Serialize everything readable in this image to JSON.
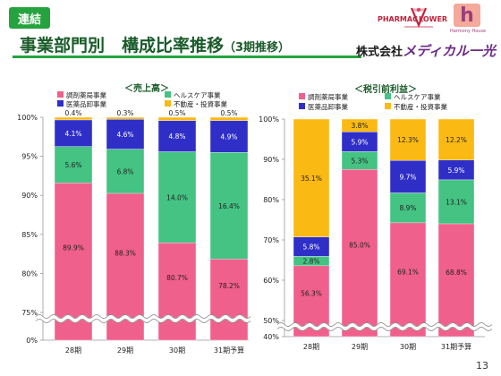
{
  "header": {
    "badge": "連結",
    "title": "事業部門別　構成比率推移",
    "title_sub": "（3期推移）",
    "company_prefix": "株式会社",
    "company_name": "メディカル一光",
    "logo_pharmacy": "PHARMAC",
    "logo_flower": "LOWER",
    "logo_harmony": "Harmony House"
  },
  "page_number": "13",
  "colors": {
    "調剤薬局事業": "#f0608c",
    "ヘルスケア事業": "#44c383",
    "医薬品卸事業": "#2f2fc8",
    "不動産・投資事業": "#fbb913",
    "brand_green": "#26a33e"
  },
  "chart_data": [
    {
      "type": "bar",
      "stacked": true,
      "title": "＜売上高＞",
      "categories": [
        "28期",
        "29期",
        "30期",
        "31期予算"
      ],
      "series": [
        {
          "name": "調剤薬局事業",
          "values": [
            89.9,
            88.3,
            80.7,
            78.2
          ],
          "labels": [
            "89.9%",
            "88.3%",
            "80.7%",
            "78.2%"
          ]
        },
        {
          "name": "ヘルスケア事業",
          "values": [
            5.6,
            6.8,
            14.0,
            16.4
          ],
          "labels": [
            "5.6%",
            "6.8%",
            "14.0%",
            "16.4%"
          ]
        },
        {
          "name": "医薬品卸事業",
          "values": [
            4.1,
            4.6,
            4.8,
            4.9
          ],
          "labels": [
            "4.1%",
            "4.6%",
            "4.8%",
            "4.9%"
          ]
        },
        {
          "name": "不動産・投資事業",
          "values": [
            0.4,
            0.3,
            0.5,
            0.5
          ],
          "labels": [
            "0.4%",
            "0.3%",
            "0.5%",
            "0.5%"
          ]
        }
      ],
      "yticks": [
        "0%",
        "75%",
        "80%",
        "85%",
        "90%",
        "95%",
        "100%"
      ],
      "ylim": [
        70,
        100
      ],
      "axis_break": true,
      "legend_position": "top"
    },
    {
      "type": "bar",
      "stacked": true,
      "title": "＜税引前利益＞",
      "categories": [
        "28期",
        "29期",
        "30期",
        "31期予算"
      ],
      "series": [
        {
          "name": "調剤薬局事業",
          "values": [
            56.3,
            85.0,
            69.1,
            68.8
          ],
          "labels": [
            "56.3%",
            "85.0%",
            "69.1%",
            "68.8%"
          ]
        },
        {
          "name": "ヘルスケア事業",
          "values": [
            2.8,
            5.3,
            8.9,
            13.1
          ],
          "labels": [
            "2.8%",
            "5.3%",
            "8.9%",
            "13.1%"
          ]
        },
        {
          "name": "医薬品卸事業",
          "values": [
            5.8,
            5.9,
            9.7,
            5.9
          ],
          "labels": [
            "5.8%",
            "5.9%",
            "9.7%",
            "5.9%"
          ]
        },
        {
          "name": "不動産・投資事業",
          "values": [
            35.1,
            3.8,
            12.3,
            12.2
          ],
          "labels": [
            "35.1%",
            "3.8%",
            "12.3%",
            "12.2%"
          ]
        }
      ],
      "yticks": [
        "40%",
        "50%",
        "60%",
        "70%",
        "80%",
        "90%",
        "100%"
      ],
      "ylim": [
        40,
        100
      ],
      "axis_break": true,
      "legend_position": "top"
    }
  ]
}
